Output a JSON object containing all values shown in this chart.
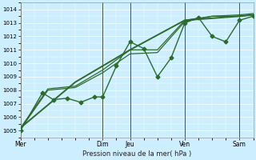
{
  "bg_color": "#cceeff",
  "grid_color": "#ffffff",
  "line_color": "#2d6a2d",
  "xlabel": "Pression niveau de la mer( hPa )",
  "ylim": [
    1004.5,
    1014.5
  ],
  "yticks": [
    1005,
    1006,
    1007,
    1008,
    1009,
    1010,
    1011,
    1012,
    1013,
    1014
  ],
  "xlim": [
    0,
    8.5
  ],
  "day_labels": [
    "Mer",
    "Dim",
    "Jeu",
    "Ven",
    "Sam"
  ],
  "day_positions": [
    0.0,
    3.0,
    4.0,
    6.0,
    8.0
  ],
  "vline_color": "#556655",
  "series": [
    {
      "x": [
        0.0,
        0.8,
        1.2,
        1.7,
        2.2,
        2.7,
        3.0,
        3.5,
        4.0,
        4.5,
        5.0,
        5.5,
        6.0,
        6.5,
        7.0,
        7.5,
        8.0,
        8.5
      ],
      "y": [
        1005.0,
        1007.8,
        1007.3,
        1007.4,
        1007.1,
        1007.5,
        1007.5,
        1009.8,
        1011.6,
        1011.1,
        1009.0,
        1010.4,
        1013.0,
        1013.4,
        1012.0,
        1011.6,
        1013.2,
        1013.5
      ],
      "marker": "D",
      "markersize": 2.5,
      "linewidth": 1.0
    },
    {
      "x": [
        0.0,
        1.0,
        2.0,
        3.0,
        4.0,
        5.0,
        6.0,
        7.0,
        8.0,
        8.5
      ],
      "y": [
        1005.1,
        1008.0,
        1008.2,
        1009.3,
        1010.7,
        1010.8,
        1013.1,
        1013.5,
        1013.5,
        1013.6
      ],
      "marker": null,
      "markersize": 0,
      "linewidth": 0.9
    },
    {
      "x": [
        0.0,
        1.0,
        2.0,
        3.0,
        4.0,
        5.0,
        6.0,
        7.0,
        8.0,
        8.5
      ],
      "y": [
        1005.2,
        1008.1,
        1008.3,
        1009.5,
        1011.0,
        1011.0,
        1013.2,
        1013.5,
        1013.6,
        1013.7
      ],
      "marker": null,
      "markersize": 0,
      "linewidth": 0.9
    },
    {
      "x": [
        0.0,
        2.0,
        4.0,
        6.0,
        8.0,
        8.5
      ],
      "y": [
        1005.2,
        1008.6,
        1011.0,
        1013.2,
        1013.5,
        1013.6
      ],
      "marker": null,
      "markersize": 0,
      "linewidth": 1.4
    }
  ]
}
